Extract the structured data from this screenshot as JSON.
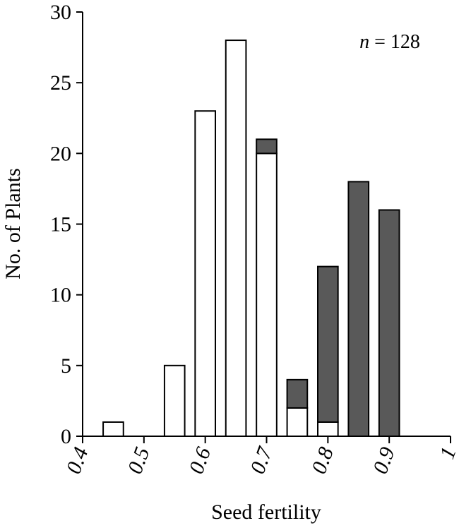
{
  "chart_data": {
    "type": "bar",
    "stacked": true,
    "annotation": {
      "italic": "n",
      "rest": " = 128"
    },
    "xlabel": "Seed fertility",
    "ylabel": "No. of Plants",
    "xlim": [
      0.4,
      1.0
    ],
    "ylim": [
      0,
      30
    ],
    "xticks": [
      "0.4",
      "0.5",
      "0.6",
      "0.7",
      "0.8",
      "0.9",
      "1"
    ],
    "yticks": [
      "0",
      "5",
      "10",
      "15",
      "20",
      "25",
      "30"
    ],
    "x": [
      0.45,
      0.55,
      0.6,
      0.65,
      0.7,
      0.75,
      0.8,
      0.85,
      0.9
    ],
    "series": [
      {
        "color": "#ffffff",
        "values": [
          1,
          5,
          23,
          28,
          20,
          2,
          1,
          0,
          0
        ]
      },
      {
        "color": "#595959",
        "values": [
          0,
          0,
          0,
          0,
          1,
          2,
          11,
          18,
          16
        ]
      }
    ],
    "grid": false,
    "legend": "none"
  }
}
